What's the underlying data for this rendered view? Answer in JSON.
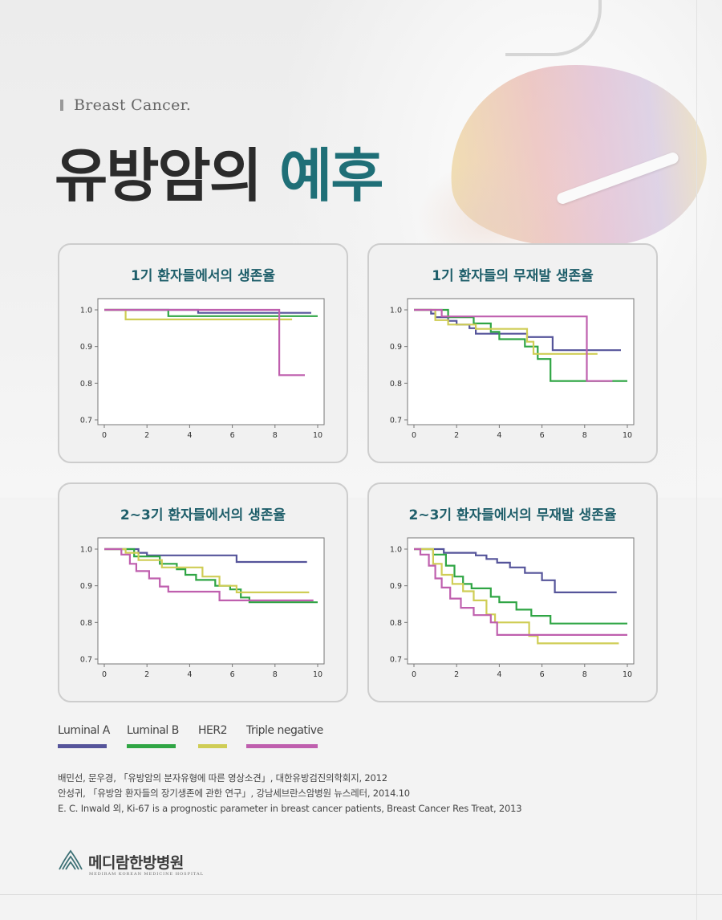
{
  "header": {
    "subtitle": "Breast Cancer.",
    "title_main": "유방암의",
    "title_accent": "예후"
  },
  "colors": {
    "luminal_a": "#55549a",
    "luminal_b": "#2fa544",
    "her2": "#cfcd55",
    "triple_negative": "#bf5fae",
    "title_accent": "#1f6f77",
    "card_title": "#1e5e6a"
  },
  "legend": [
    {
      "label": "Luminal A",
      "color": "#55549a"
    },
    {
      "label": "Luminal B",
      "color": "#2fa544"
    },
    {
      "label": "HER2",
      "color": "#cfcd55"
    },
    {
      "label": "Triple negative",
      "color": "#bf5fae"
    }
  ],
  "chart_data": [
    {
      "type": "line",
      "step": true,
      "title": "1기 환자들에서의 생존율",
      "xlim": [
        0,
        10
      ],
      "ylim": [
        0.7,
        1.0
      ],
      "xticks": [
        0,
        2,
        4,
        6,
        8,
        10
      ],
      "yticks": [
        0.7,
        0.8,
        0.9,
        1.0
      ],
      "series": [
        {
          "name": "Luminal A",
          "color": "#55549a",
          "points": [
            [
              0,
              1.0
            ],
            [
              4.4,
              1.0
            ],
            [
              4.4,
              0.992
            ],
            [
              9.7,
              0.992
            ]
          ]
        },
        {
          "name": "Luminal B",
          "color": "#2fa544",
          "points": [
            [
              0,
              1.0
            ],
            [
              3.0,
              1.0
            ],
            [
              3.0,
              0.983
            ],
            [
              10.0,
              0.983
            ]
          ]
        },
        {
          "name": "HER2",
          "color": "#cfcd55",
          "points": [
            [
              0,
              1.0
            ],
            [
              1.0,
              1.0
            ],
            [
              1.0,
              0.974
            ],
            [
              8.8,
              0.974
            ]
          ]
        },
        {
          "name": "Triple negative",
          "color": "#bf5fae",
          "points": [
            [
              0,
              1.0
            ],
            [
              8.2,
              1.0
            ],
            [
              8.2,
              0.822
            ],
            [
              9.4,
              0.822
            ]
          ]
        }
      ]
    },
    {
      "type": "line",
      "step": true,
      "title": "1기 환자들의 무재발 생존율",
      "xlim": [
        0,
        10
      ],
      "ylim": [
        0.7,
        1.0
      ],
      "xticks": [
        0,
        2,
        4,
        6,
        8,
        10
      ],
      "yticks": [
        0.7,
        0.8,
        0.9,
        1.0
      ],
      "series": [
        {
          "name": "Luminal A",
          "color": "#55549a",
          "points": [
            [
              0,
              1.0
            ],
            [
              0.8,
              1.0
            ],
            [
              0.8,
              0.99
            ],
            [
              1.0,
              0.99
            ],
            [
              1.0,
              0.98
            ],
            [
              1.6,
              0.98
            ],
            [
              1.6,
              0.97
            ],
            [
              2.0,
              0.97
            ],
            [
              2.0,
              0.96
            ],
            [
              2.6,
              0.96
            ],
            [
              2.6,
              0.95
            ],
            [
              2.9,
              0.95
            ],
            [
              2.9,
              0.935
            ],
            [
              5.3,
              0.935
            ],
            [
              5.3,
              0.926
            ],
            [
              6.5,
              0.926
            ],
            [
              6.5,
              0.89
            ],
            [
              9.7,
              0.89
            ]
          ]
        },
        {
          "name": "Luminal B",
          "color": "#2fa544",
          "points": [
            [
              0,
              1.0
            ],
            [
              1.6,
              1.0
            ],
            [
              1.6,
              0.98
            ],
            [
              2.8,
              0.98
            ],
            [
              2.8,
              0.963
            ],
            [
              3.6,
              0.963
            ],
            [
              3.6,
              0.94
            ],
            [
              4.0,
              0.94
            ],
            [
              4.0,
              0.92
            ],
            [
              5.2,
              0.92
            ],
            [
              5.2,
              0.9
            ],
            [
              5.8,
              0.9
            ],
            [
              5.8,
              0.866
            ],
            [
              6.4,
              0.866
            ],
            [
              6.4,
              0.806
            ],
            [
              10.0,
              0.806
            ]
          ]
        },
        {
          "name": "HER2",
          "color": "#cfcd55",
          "points": [
            [
              0,
              1.0
            ],
            [
              1.0,
              1.0
            ],
            [
              1.0,
              0.972
            ],
            [
              1.6,
              0.972
            ],
            [
              1.6,
              0.96
            ],
            [
              2.9,
              0.96
            ],
            [
              2.9,
              0.948
            ],
            [
              5.3,
              0.948
            ],
            [
              5.3,
              0.913
            ],
            [
              5.6,
              0.913
            ],
            [
              5.6,
              0.88
            ],
            [
              8.6,
              0.88
            ]
          ]
        },
        {
          "name": "Triple negative",
          "color": "#bf5fae",
          "points": [
            [
              0,
              1.0
            ],
            [
              1.3,
              1.0
            ],
            [
              1.3,
              0.982
            ],
            [
              8.1,
              0.982
            ],
            [
              8.1,
              0.806
            ],
            [
              9.3,
              0.806
            ]
          ]
        }
      ]
    },
    {
      "type": "line",
      "step": true,
      "title": "2~3기 환자들에서의 생존율",
      "xlim": [
        0,
        10
      ],
      "ylim": [
        0.7,
        1.0
      ],
      "xticks": [
        0,
        2,
        4,
        6,
        8,
        10
      ],
      "yticks": [
        0.7,
        0.8,
        0.9,
        1.0
      ],
      "series": [
        {
          "name": "Luminal A",
          "color": "#55549a",
          "points": [
            [
              0,
              1.0
            ],
            [
              1.6,
              1.0
            ],
            [
              1.6,
              0.99
            ],
            [
              2.0,
              0.99
            ],
            [
              2.0,
              0.983
            ],
            [
              6.2,
              0.983
            ],
            [
              6.2,
              0.965
            ],
            [
              9.5,
              0.965
            ]
          ]
        },
        {
          "name": "Luminal B",
          "color": "#2fa544",
          "points": [
            [
              0,
              1.0
            ],
            [
              1.4,
              1.0
            ],
            [
              1.4,
              0.98
            ],
            [
              2.6,
              0.98
            ],
            [
              2.6,
              0.96
            ],
            [
              3.4,
              0.96
            ],
            [
              3.4,
              0.945
            ],
            [
              3.8,
              0.945
            ],
            [
              3.8,
              0.93
            ],
            [
              4.3,
              0.93
            ],
            [
              4.3,
              0.916
            ],
            [
              5.2,
              0.916
            ],
            [
              5.2,
              0.9
            ],
            [
              5.9,
              0.9
            ],
            [
              5.9,
              0.89
            ],
            [
              6.4,
              0.89
            ],
            [
              6.4,
              0.868
            ],
            [
              6.8,
              0.868
            ],
            [
              6.8,
              0.855
            ],
            [
              10.0,
              0.855
            ]
          ]
        },
        {
          "name": "HER2",
          "color": "#cfcd55",
          "points": [
            [
              0,
              1.0
            ],
            [
              1.0,
              1.0
            ],
            [
              1.0,
              0.99
            ],
            [
              1.6,
              0.99
            ],
            [
              1.6,
              0.97
            ],
            [
              2.7,
              0.97
            ],
            [
              2.7,
              0.95
            ],
            [
              4.6,
              0.95
            ],
            [
              4.6,
              0.925
            ],
            [
              5.4,
              0.925
            ],
            [
              5.4,
              0.9
            ],
            [
              6.2,
              0.9
            ],
            [
              6.2,
              0.882
            ],
            [
              9.6,
              0.882
            ]
          ]
        },
        {
          "name": "Triple negative",
          "color": "#bf5fae",
          "points": [
            [
              0,
              1.0
            ],
            [
              0.8,
              1.0
            ],
            [
              0.8,
              0.985
            ],
            [
              1.2,
              0.985
            ],
            [
              1.2,
              0.96
            ],
            [
              1.5,
              0.96
            ],
            [
              1.5,
              0.94
            ],
            [
              2.1,
              0.94
            ],
            [
              2.1,
              0.92
            ],
            [
              2.6,
              0.92
            ],
            [
              2.6,
              0.898
            ],
            [
              3.0,
              0.898
            ],
            [
              3.0,
              0.884
            ],
            [
              5.4,
              0.884
            ],
            [
              5.4,
              0.86
            ],
            [
              9.8,
              0.86
            ]
          ]
        }
      ]
    },
    {
      "type": "line",
      "step": true,
      "title": "2~3기 환자들에서의 무재발 생존율",
      "xlim": [
        0,
        10
      ],
      "ylim": [
        0.7,
        1.0
      ],
      "xticks": [
        0,
        2,
        4,
        6,
        8,
        10
      ],
      "yticks": [
        0.7,
        0.8,
        0.9,
        1.0
      ],
      "series": [
        {
          "name": "Luminal A",
          "color": "#55549a",
          "points": [
            [
              0,
              1.0
            ],
            [
              1.4,
              1.0
            ],
            [
              1.4,
              0.99
            ],
            [
              2.9,
              0.99
            ],
            [
              2.9,
              0.983
            ],
            [
              3.4,
              0.983
            ],
            [
              3.4,
              0.973
            ],
            [
              3.9,
              0.973
            ],
            [
              3.9,
              0.963
            ],
            [
              4.5,
              0.963
            ],
            [
              4.5,
              0.95
            ],
            [
              5.2,
              0.95
            ],
            [
              5.2,
              0.935
            ],
            [
              6.0,
              0.935
            ],
            [
              6.0,
              0.915
            ],
            [
              6.6,
              0.915
            ],
            [
              6.6,
              0.882
            ],
            [
              9.5,
              0.882
            ]
          ]
        },
        {
          "name": "Luminal B",
          "color": "#2fa544",
          "points": [
            [
              0,
              1.0
            ],
            [
              0.9,
              1.0
            ],
            [
              0.9,
              0.985
            ],
            [
              1.5,
              0.985
            ],
            [
              1.5,
              0.955
            ],
            [
              1.9,
              0.955
            ],
            [
              1.9,
              0.925
            ],
            [
              2.3,
              0.925
            ],
            [
              2.3,
              0.905
            ],
            [
              2.7,
              0.905
            ],
            [
              2.7,
              0.893
            ],
            [
              3.6,
              0.893
            ],
            [
              3.6,
              0.87
            ],
            [
              4.0,
              0.87
            ],
            [
              4.0,
              0.855
            ],
            [
              4.8,
              0.855
            ],
            [
              4.8,
              0.835
            ],
            [
              5.5,
              0.835
            ],
            [
              5.5,
              0.818
            ],
            [
              6.4,
              0.818
            ],
            [
              6.4,
              0.797
            ],
            [
              10.0,
              0.797
            ]
          ]
        },
        {
          "name": "HER2",
          "color": "#cfcd55",
          "points": [
            [
              0,
              1.0
            ],
            [
              0.9,
              1.0
            ],
            [
              0.9,
              0.96
            ],
            [
              1.3,
              0.96
            ],
            [
              1.3,
              0.93
            ],
            [
              1.8,
              0.93
            ],
            [
              1.8,
              0.905
            ],
            [
              2.3,
              0.905
            ],
            [
              2.3,
              0.885
            ],
            [
              2.8,
              0.885
            ],
            [
              2.8,
              0.86
            ],
            [
              3.4,
              0.86
            ],
            [
              3.4,
              0.822
            ],
            [
              3.8,
              0.822
            ],
            [
              3.8,
              0.8
            ],
            [
              5.4,
              0.8
            ],
            [
              5.4,
              0.763
            ],
            [
              5.8,
              0.763
            ],
            [
              5.8,
              0.743
            ],
            [
              9.6,
              0.743
            ]
          ]
        },
        {
          "name": "Triple negative",
          "color": "#bf5fae",
          "points": [
            [
              0,
              1.0
            ],
            [
              0.3,
              1.0
            ],
            [
              0.3,
              0.985
            ],
            [
              0.7,
              0.985
            ],
            [
              0.7,
              0.955
            ],
            [
              1.0,
              0.955
            ],
            [
              1.0,
              0.92
            ],
            [
              1.3,
              0.92
            ],
            [
              1.3,
              0.895
            ],
            [
              1.7,
              0.895
            ],
            [
              1.7,
              0.865
            ],
            [
              2.2,
              0.865
            ],
            [
              2.2,
              0.84
            ],
            [
              2.8,
              0.84
            ],
            [
              2.8,
              0.82
            ],
            [
              3.6,
              0.82
            ],
            [
              3.6,
              0.8
            ],
            [
              3.9,
              0.8
            ],
            [
              3.9,
              0.766
            ],
            [
              10.0,
              0.766
            ]
          ]
        }
      ]
    }
  ],
  "references": [
    "배민선, 문우경, 「유방암의 분자유형에 따른 영상소견」, 대한유방검진의학회지, 2012",
    "안성귀, 「유방암 환자들의 장기생존에 관한 연구」, 강남세브란스암병원 뉴스레터, 2014.10",
    "E. C. Inwald 외, Ki-67 is a prognostic parameter in breast cancer patients, Breast Cancer Res Treat, 2013"
  ],
  "logo": {
    "name": "메디람한방병원",
    "sub": "MEDIRAM KOREAN MEDICINE HOSPITAL"
  }
}
